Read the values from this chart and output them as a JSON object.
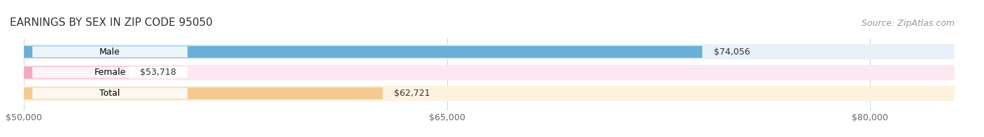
{
  "title": "EARNINGS BY SEX IN ZIP CODE 95050",
  "source": "Source: ZipAtlas.com",
  "categories": [
    "Male",
    "Female",
    "Total"
  ],
  "values": [
    74056,
    53718,
    62721
  ],
  "labels": [
    "$74,056",
    "$53,718",
    "$62,721"
  ],
  "bar_colors": [
    "#6aafd6",
    "#f4a8c0",
    "#f5c990"
  ],
  "bar_bg_colors": [
    "#e8f0f8",
    "#fce8f0",
    "#fdf2e0"
  ],
  "xmin": 50000,
  "xmax": 83000,
  "xticks": [
    50000,
    65000,
    80000
  ],
  "xticklabels": [
    "$50,000",
    "$65,000",
    "$80,000"
  ],
  "title_fontsize": 11,
  "source_fontsize": 9,
  "label_fontsize": 9,
  "bar_height": 0.58,
  "background_color": "#ffffff"
}
